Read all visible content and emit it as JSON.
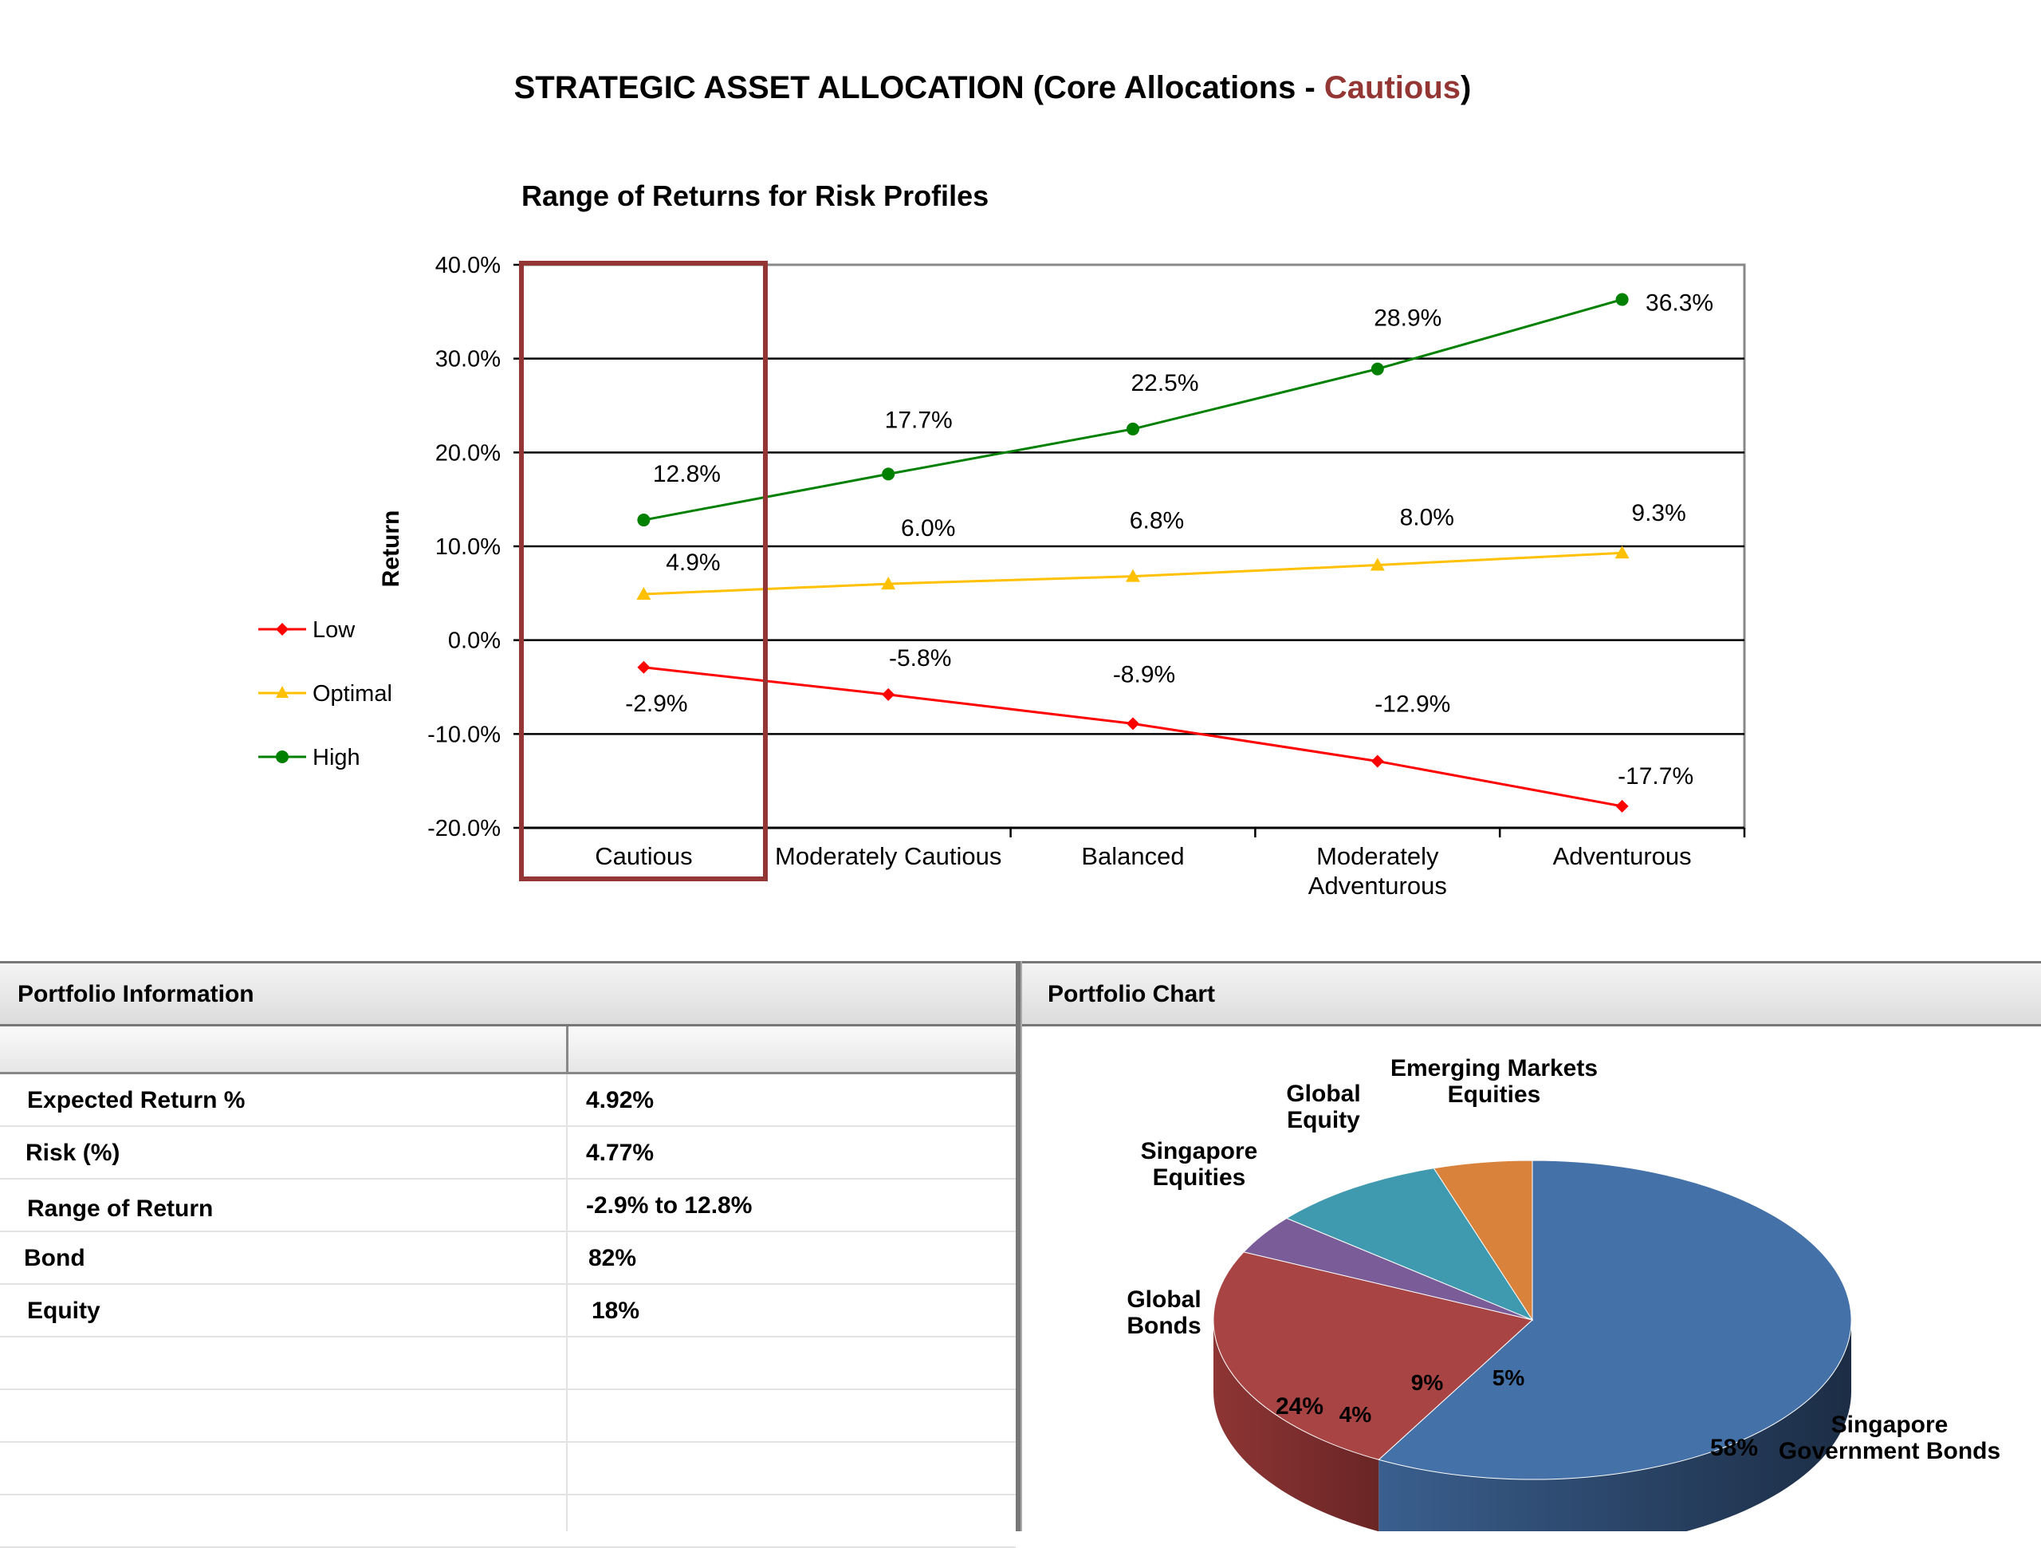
{
  "page": {
    "title_prefix": "STRATEGIC ASSET ALLOCATION (Core Allocations - ",
    "title_accent": "Cautious",
    "title_suffix": ")",
    "accent_color": "#943634"
  },
  "chart_data": [
    {
      "type": "line",
      "title": "Range of Returns for Risk Profiles",
      "ylabel": "Return",
      "xlabel": "",
      "categories": [
        "Cautious",
        "Moderately Cautious",
        "Balanced",
        "Moderately Adventurous",
        "Adventurous"
      ],
      "ylim": [
        -20,
        40
      ],
      "yticks": [
        "40.0%",
        "30.0%",
        "20.0%",
        "10.0%",
        "0.0%",
        "-10.0%",
        "-20.0%"
      ],
      "grid": true,
      "legend_position": "left",
      "highlighted_category": "Cautious",
      "series": [
        {
          "name": "Low",
          "color": "#ff0000",
          "marker": "diamond",
          "values": [
            -2.9,
            -5.8,
            -8.9,
            -12.9,
            -17.7
          ],
          "labels": [
            "-2.9%",
            "-5.8%",
            "-8.9%",
            "-12.9%",
            "-17.7%"
          ]
        },
        {
          "name": "Optimal",
          "color": "#ffc000",
          "marker": "triangle",
          "values": [
            4.9,
            6.0,
            6.8,
            8.0,
            9.3
          ],
          "labels": [
            "4.9%",
            "6.0%",
            "6.8%",
            "8.0%",
            "9.3%"
          ]
        },
        {
          "name": "High",
          "color": "#008000",
          "marker": "circle",
          "values": [
            12.8,
            17.7,
            22.5,
            28.9,
            36.3
          ],
          "labels": [
            "12.8%",
            "17.7%",
            "22.5%",
            "28.9%",
            "36.3%"
          ]
        }
      ]
    },
    {
      "type": "pie",
      "labels": [
        "Singapore Government Bonds",
        "Global Bonds",
        "Singapore Equities",
        "Global Equity",
        "Emerging Markets Equities"
      ],
      "values": [
        58,
        24,
        4,
        9,
        5
      ],
      "value_labels": [
        "58%",
        "24%",
        "4%",
        "9%",
        "5%"
      ],
      "colors": [
        "#4472a8",
        "#a84443",
        "#7a5c99",
        "#3f9ab0",
        "#d9823b"
      ]
    }
  ],
  "portfolio_info": {
    "header": "Portfolio Information",
    "rows": [
      {
        "label": "Expected Return %",
        "value": "4.92%"
      },
      {
        "label": "Risk (%)",
        "value": "4.77%"
      },
      {
        "label": "Range of Return",
        "value": "-2.9% to 12.8%"
      },
      {
        "label": "Bond",
        "value": "82%"
      },
      {
        "label": "Equity",
        "value": "18%"
      }
    ]
  },
  "portfolio_chart": {
    "header": "Portfolio Chart"
  }
}
